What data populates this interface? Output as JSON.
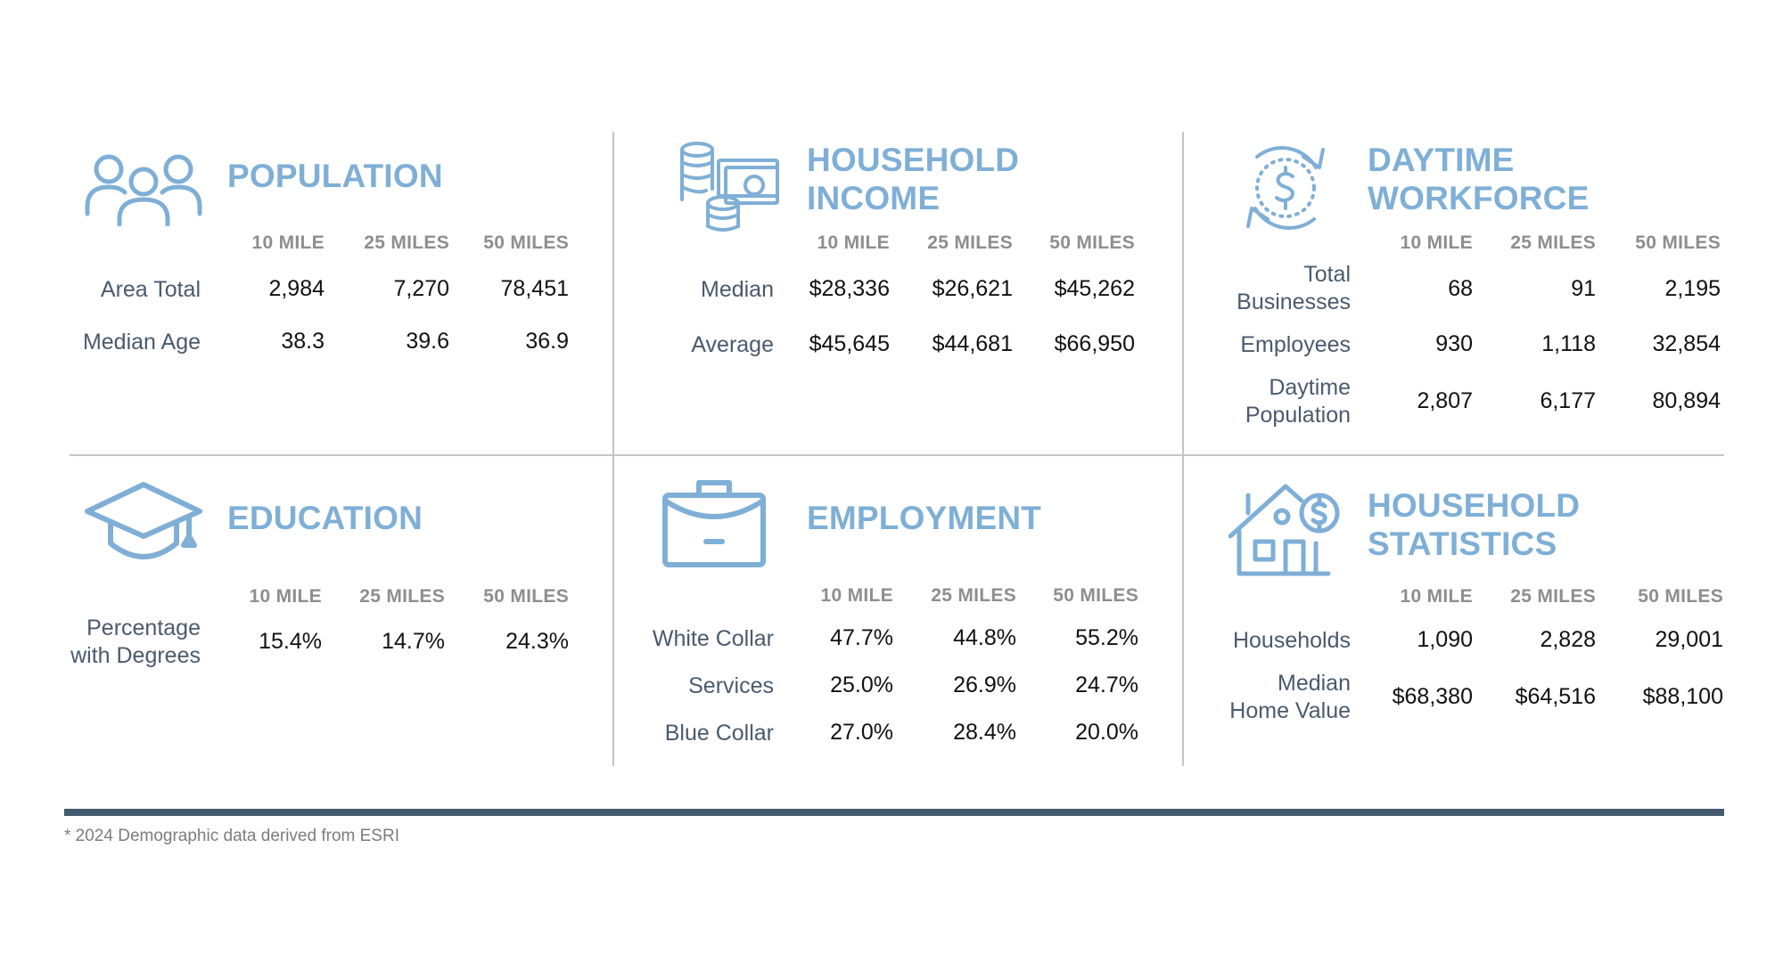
{
  "columns": [
    "10 MILE",
    "25 MILES",
    "50 MILES"
  ],
  "population": {
    "title": "POPULATION",
    "rows": [
      {
        "label": "Area Total",
        "values": [
          "2,984",
          "7,270",
          "78,451"
        ]
      },
      {
        "label": "Median Age",
        "values": [
          "38.3",
          "39.6",
          "36.9"
        ]
      }
    ]
  },
  "household_income": {
    "title_line1": "HOUSEHOLD",
    "title_line2": "INCOME",
    "rows": [
      {
        "label": "Median",
        "values": [
          "$28,336",
          "$26,621",
          "$45,262"
        ]
      },
      {
        "label": "Average",
        "values": [
          "$45,645",
          "$44,681",
          "$66,950"
        ]
      }
    ]
  },
  "daytime_workforce": {
    "title_line1": "DAYTIME",
    "title_line2": "WORKFORCE",
    "rows": [
      {
        "label_line1": "Total",
        "label_line2": "Businesses",
        "values": [
          "68",
          "91",
          "2,195"
        ]
      },
      {
        "label": "Employees",
        "values": [
          "930",
          "1,118",
          "32,854"
        ]
      },
      {
        "label_line1": "Daytime",
        "label_line2": "Population",
        "values": [
          "2,807",
          "6,177",
          "80,894"
        ]
      }
    ]
  },
  "education": {
    "title": "EDUCATION",
    "rows": [
      {
        "label_line1": "Percentage",
        "label_line2": "with Degrees",
        "values": [
          "15.4%",
          "14.7%",
          "24.3%"
        ]
      }
    ]
  },
  "employment": {
    "title": "EMPLOYMENT",
    "rows": [
      {
        "label": "White Collar",
        "values": [
          "47.7%",
          "44.8%",
          "55.2%"
        ]
      },
      {
        "label": "Services",
        "values": [
          "25.0%",
          "26.9%",
          "24.7%"
        ]
      },
      {
        "label": "Blue Collar",
        "values": [
          "27.0%",
          "28.4%",
          "20.0%"
        ]
      }
    ]
  },
  "household_statistics": {
    "title_line1": "HOUSEHOLD",
    "title_line2": "STATISTICS",
    "rows": [
      {
        "label": "Households",
        "values": [
          "1,090",
          "2,828",
          "29,001"
        ]
      },
      {
        "label_line1": "Median",
        "label_line2": "Home Value",
        "values": [
          "$68,380",
          "$64,516",
          "$88,100"
        ]
      }
    ]
  },
  "footnote": "* 2024 Demographic data derived from ESRI",
  "colors": {
    "accent": "#7fafd6",
    "rule": "#445a6f",
    "divider": "#c4c4c4"
  },
  "icons": [
    "people-icon",
    "money-stack-icon",
    "dollar-cycle-icon",
    "graduation-cap-icon",
    "briefcase-icon",
    "house-dollar-icon"
  ]
}
